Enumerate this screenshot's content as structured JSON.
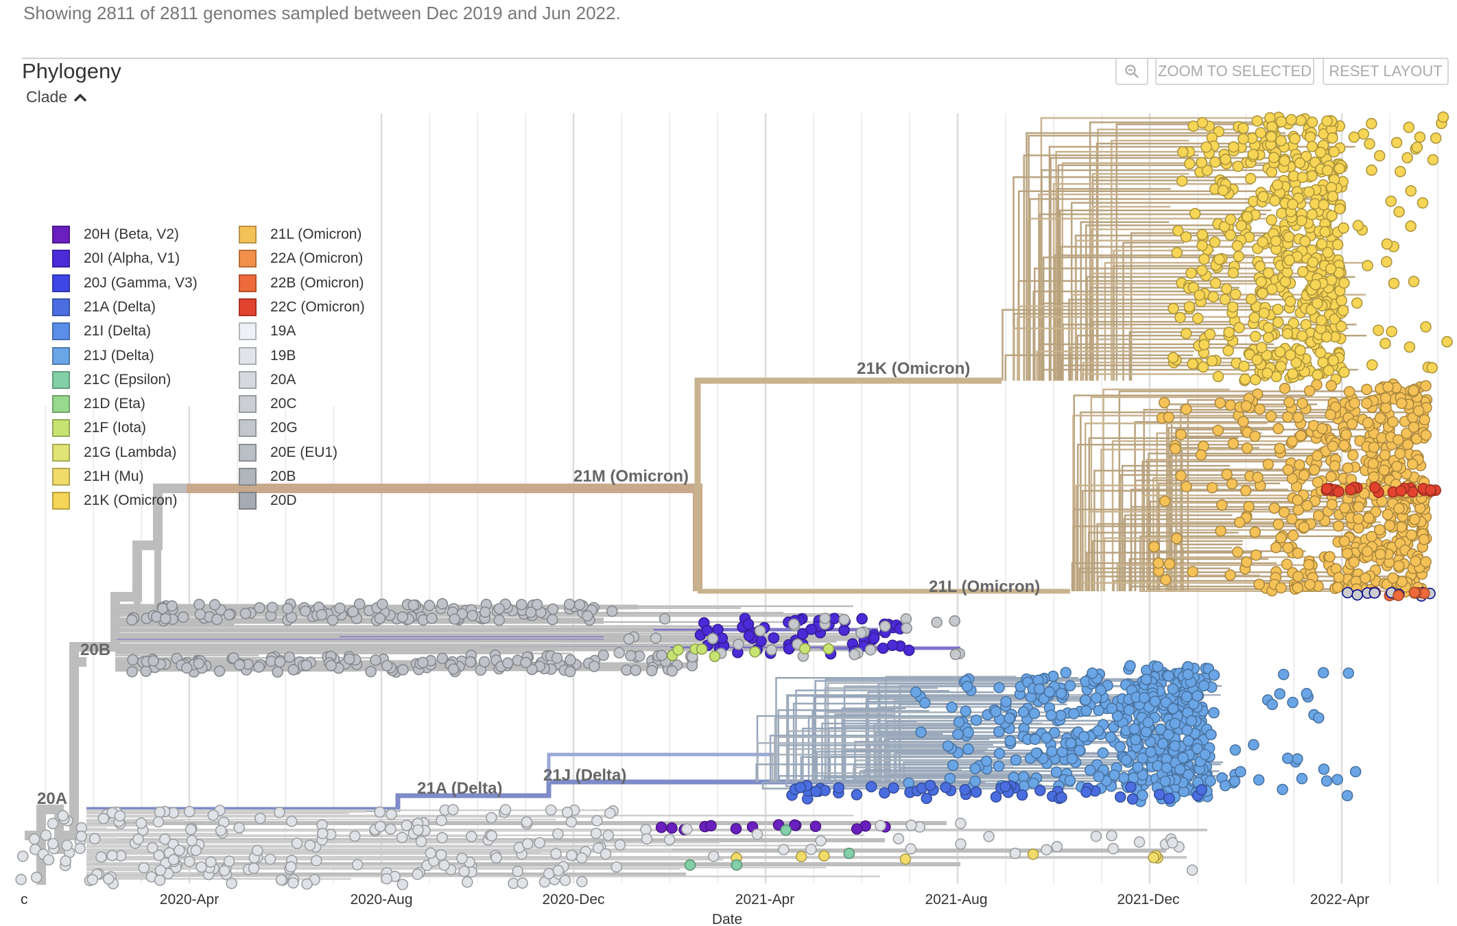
{
  "header": {
    "summary": "Showing 2811 of 2811 genomes sampled between Dec 2019 and Jun 2022."
  },
  "panel": {
    "title": "Phylogeny",
    "legend_toggle_label": "Clade",
    "zoom_icon": "magnifier-zoom-icon",
    "zoom_to_selected_label": "ZOOM TO SELECTED",
    "reset_layout_label": "RESET LAYOUT"
  },
  "legend": {
    "items": [
      {
        "label": "20H (Beta, V2)",
        "color": "#6a1fbf"
      },
      {
        "label": "20I (Alpha, V1)",
        "color": "#4b2ad8"
      },
      {
        "label": "20J (Gamma, V3)",
        "color": "#3e46e6"
      },
      {
        "label": "21A (Delta)",
        "color": "#4a6ee0"
      },
      {
        "label": "21I (Delta)",
        "color": "#5b8ee8"
      },
      {
        "label": "21J (Delta)",
        "color": "#6aa5e6"
      },
      {
        "label": "21C (Epsilon)",
        "color": "#82cfa8"
      },
      {
        "label": "21D (Eta)",
        "color": "#97d98e"
      },
      {
        "label": "21F (Iota)",
        "color": "#c7e372"
      },
      {
        "label": "21G (Lambda)",
        "color": "#dfe474"
      },
      {
        "label": "21H (Mu)",
        "color": "#f1dc6a"
      },
      {
        "label": "21K (Omicron)",
        "color": "#f7d556"
      },
      {
        "label": "21L (Omicron)",
        "color": "#f5c258"
      },
      {
        "label": "22A (Omicron)",
        "color": "#f29049"
      },
      {
        "label": "22B (Omicron)",
        "color": "#ee6a3b"
      },
      {
        "label": "22C (Omicron)",
        "color": "#e2432f"
      },
      {
        "label": "19A",
        "color": "#eef2f6"
      },
      {
        "label": "19B",
        "color": "#e1e5ea"
      },
      {
        "label": "20A",
        "color": "#d5d9de"
      },
      {
        "label": "20C",
        "color": "#cbcfd5"
      },
      {
        "label": "20G",
        "color": "#c3c7cd"
      },
      {
        "label": "20E (EU1)",
        "color": "#babec5"
      },
      {
        "label": "20B",
        "color": "#b1b5bc"
      },
      {
        "label": "20D",
        "color": "#a6aab2"
      }
    ]
  },
  "chart_data": {
    "type": "scatter",
    "title": "Phylogeny",
    "xlabel": "Date",
    "ylabel": "",
    "x_range": [
      "2019-12-01",
      "2022-06-01"
    ],
    "x_ticks": [
      "2020-Apr",
      "2020-Aug",
      "2020-Dec",
      "2021-Apr",
      "2021-Aug",
      "2021-Dec",
      "2022-Apr"
    ],
    "x_edge_label": "c",
    "grid": true,
    "legend_position": "top-left",
    "total_genomes": 2811,
    "clade_labels": [
      {
        "label": "21K (Omicron)",
        "date": "2021.52"
      },
      {
        "label": "21M (Omicron)",
        "date": "2020.98"
      },
      {
        "label": "21L (Omicron)",
        "date": "2021.66"
      },
      {
        "label": "20B",
        "date": "2020.07"
      },
      {
        "label": "20A",
        "date": "2019.96"
      },
      {
        "label": "21A (Delta)",
        "date": "2020.74"
      },
      {
        "label": "21J (Delta)",
        "date": "2020.97"
      }
    ],
    "clusters": [
      {
        "name": "21K (Omicron)",
        "color": "#f7d556",
        "date_range": [
          "2021-09",
          "2022-05"
        ],
        "approx_count": 700
      },
      {
        "name": "21L (Omicron)",
        "color": "#f5c258",
        "date_range": [
          "2021-11",
          "2022-05"
        ],
        "approx_count": 650
      },
      {
        "name": "22C (Omicron)",
        "color": "#e2432f",
        "date_range": [
          "2022-02",
          "2022-05"
        ],
        "approx_count": 25
      },
      {
        "name": "22B (Omicron)",
        "color": "#ee6a3b",
        "date_range": [
          "2022-03",
          "2022-05"
        ],
        "approx_count": 15
      },
      {
        "name": "21J (Delta)",
        "color": "#6aa5e6",
        "date_range": [
          "2021-03",
          "2022-03"
        ],
        "approx_count": 520
      },
      {
        "name": "21A (Delta)",
        "color": "#4a6ee0",
        "date_range": [
          "2021-04",
          "2022-03"
        ],
        "approx_count": 60
      },
      {
        "name": "20I (Alpha, V1)",
        "color": "#4b2ad8",
        "date_range": [
          "2020-12",
          "2021-07"
        ],
        "approx_count": 70
      },
      {
        "name": "20H (Beta, V2)",
        "color": "#6a1fbf",
        "date_range": [
          "2021-01",
          "2021-06"
        ],
        "approx_count": 15
      },
      {
        "name": "20B",
        "color": "#b1b5bc",
        "date_range": [
          "2020-03",
          "2021-08"
        ],
        "approx_count": 180
      },
      {
        "name": "20A",
        "color": "#d5d9de",
        "date_range": [
          "2020-01",
          "2021-11"
        ],
        "approx_count": 200
      },
      {
        "name": "21F (Iota)",
        "color": "#c7e372",
        "date_range": [
          "2021-02",
          "2021-06"
        ],
        "approx_count": 8
      },
      {
        "name": "21H (Mu)",
        "color": "#f1dc6a",
        "date_range": [
          "2021-03",
          "2021-12"
        ],
        "approx_count": 8
      },
      {
        "name": "21C (Epsilon)",
        "color": "#82cfa8",
        "date_range": [
          "2021-01",
          "2021-07"
        ],
        "approx_count": 4
      }
    ]
  }
}
